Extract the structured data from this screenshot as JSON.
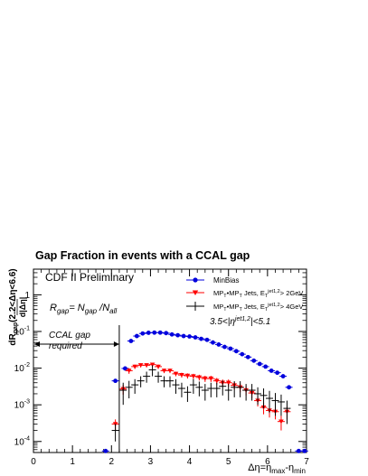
{
  "figure": {
    "title": "Gap Fraction in events with a CCAL gap",
    "preliminary_label": "CDF II Preliminary",
    "formula": "R_gap = N_gap / N_all",
    "eta_condition": "3.5<|η^jet1,2|<5.1",
    "gap_annotation_line1": "CCAL gap",
    "gap_annotation_line2": "required",
    "xlabel": "Δη=η_max-η_min",
    "ylabel": "dR_gap(2.2<Δη<6.6) / d|Δη|"
  },
  "chart_data": {
    "type": "scatter",
    "title": "Gap Fraction in events with a CCAL gap",
    "xlabel": "Δη=η_max-η_min",
    "ylabel": "dR_gap(2.2<Δη<6.6)/d|Δη|",
    "xlim": [
      0,
      7
    ],
    "ylim": [
      5e-05,
      5
    ],
    "y_scale": "log",
    "x_ticks": [
      0,
      1,
      2,
      3,
      4,
      5,
      6,
      7
    ],
    "y_ticks": [
      {
        "value": 0.0001,
        "label": "10^-4"
      },
      {
        "value": 0.001,
        "label": "10^-3"
      },
      {
        "value": 0.01,
        "label": "10^-2"
      },
      {
        "value": 0.1,
        "label": "10^-1"
      },
      {
        "value": 1,
        "label": "1"
      }
    ],
    "legend_position": "top-right",
    "series": [
      {
        "name": "MinBias",
        "color": "#0000dd",
        "marker": "circle",
        "points": [
          {
            "x": 1.85,
            "y": 5.5e-05
          },
          {
            "x": 2.1,
            "y": 0.0045
          },
          {
            "x": 2.35,
            "y": 0.0098
          },
          {
            "x": 2.5,
            "y": 0.055
          },
          {
            "x": 2.65,
            "y": 0.075
          },
          {
            "x": 2.8,
            "y": 0.088
          },
          {
            "x": 2.95,
            "y": 0.092
          },
          {
            "x": 3.1,
            "y": 0.093
          },
          {
            "x": 3.25,
            "y": 0.093
          },
          {
            "x": 3.4,
            "y": 0.09
          },
          {
            "x": 3.55,
            "y": 0.083
          },
          {
            "x": 3.7,
            "y": 0.079
          },
          {
            "x": 3.85,
            "y": 0.075
          },
          {
            "x": 4.0,
            "y": 0.073
          },
          {
            "x": 4.15,
            "y": 0.069
          },
          {
            "x": 4.3,
            "y": 0.063
          },
          {
            "x": 4.45,
            "y": 0.059
          },
          {
            "x": 4.6,
            "y": 0.05
          },
          {
            "x": 4.75,
            "y": 0.044
          },
          {
            "x": 4.9,
            "y": 0.038
          },
          {
            "x": 5.05,
            "y": 0.034
          },
          {
            "x": 5.2,
            "y": 0.029
          },
          {
            "x": 5.35,
            "y": 0.024
          },
          {
            "x": 5.5,
            "y": 0.02
          },
          {
            "x": 5.65,
            "y": 0.016
          },
          {
            "x": 5.8,
            "y": 0.013
          },
          {
            "x": 5.95,
            "y": 0.011
          },
          {
            "x": 6.1,
            "y": 0.0085
          },
          {
            "x": 6.25,
            "y": 0.0075
          },
          {
            "x": 6.4,
            "y": 0.006
          },
          {
            "x": 6.55,
            "y": 0.003
          },
          {
            "x": 6.8,
            "y": 5.5e-05
          },
          {
            "x": 6.95,
            "y": 5.5e-05
          }
        ]
      },
      {
        "name": "MP_T•MP_T Jets, E_T^jet1,2 > 2GeV",
        "color": "#ff0000",
        "marker": "triangle-down",
        "points": [
          {
            "x": 2.1,
            "y": 0.0003,
            "err": 0.0001
          },
          {
            "x": 2.3,
            "y": 0.0027,
            "err": 0.0008
          },
          {
            "x": 2.45,
            "y": 0.0085,
            "err": 0.0015
          },
          {
            "x": 2.6,
            "y": 0.011,
            "err": 0.0015
          },
          {
            "x": 2.75,
            "y": 0.012,
            "err": 0.0015
          },
          {
            "x": 2.9,
            "y": 0.012,
            "err": 0.0015
          },
          {
            "x": 3.05,
            "y": 0.0125,
            "err": 0.0015
          },
          {
            "x": 3.2,
            "y": 0.011,
            "err": 0.0015
          },
          {
            "x": 3.35,
            "y": 0.0085,
            "err": 0.0012
          },
          {
            "x": 3.5,
            "y": 0.0085,
            "err": 0.0012
          },
          {
            "x": 3.65,
            "y": 0.007,
            "err": 0.001
          },
          {
            "x": 3.8,
            "y": 0.0065,
            "err": 0.001
          },
          {
            "x": 3.95,
            "y": 0.0062,
            "err": 0.001
          },
          {
            "x": 4.1,
            "y": 0.006,
            "err": 0.001
          },
          {
            "x": 4.25,
            "y": 0.0056,
            "err": 0.001
          },
          {
            "x": 4.4,
            "y": 0.0052,
            "err": 0.001
          },
          {
            "x": 4.55,
            "y": 0.0052,
            "err": 0.001
          },
          {
            "x": 4.7,
            "y": 0.0045,
            "err": 0.0009
          },
          {
            "x": 4.85,
            "y": 0.004,
            "err": 0.0009
          },
          {
            "x": 5.0,
            "y": 0.004,
            "err": 0.0009
          },
          {
            "x": 5.15,
            "y": 0.0034,
            "err": 0.0008
          },
          {
            "x": 5.3,
            "y": 0.003,
            "err": 0.0008
          },
          {
            "x": 5.45,
            "y": 0.0025,
            "err": 0.0007
          },
          {
            "x": 5.6,
            "y": 0.0021,
            "err": 0.0006
          },
          {
            "x": 5.75,
            "y": 0.0013,
            "err": 0.0004
          },
          {
            "x": 5.9,
            "y": 0.00085,
            "err": 0.0003
          },
          {
            "x": 6.05,
            "y": 0.0007,
            "err": 0.00025
          },
          {
            "x": 6.2,
            "y": 0.00065,
            "err": 0.00025
          },
          {
            "x": 6.35,
            "y": 0.00035,
            "err": 0.00015
          },
          {
            "x": 6.5,
            "y": 0.00065,
            "err": 0.00025
          }
        ]
      },
      {
        "name": "MP_T•MP_T Jets, E_T^jet1,2 > 4GeV",
        "color": "#000000",
        "marker": "cross",
        "points": [
          {
            "x": 2.1,
            "y": 0.0002,
            "err": 0.0001
          },
          {
            "x": 2.3,
            "y": 0.0025,
            "err": 0.0015
          },
          {
            "x": 2.45,
            "y": 0.003,
            "err": 0.0015
          },
          {
            "x": 2.6,
            "y": 0.0035,
            "err": 0.0015
          },
          {
            "x": 2.75,
            "y": 0.0045,
            "err": 0.0015
          },
          {
            "x": 2.9,
            "y": 0.006,
            "err": 0.002
          },
          {
            "x": 3.05,
            "y": 0.009,
            "err": 0.003
          },
          {
            "x": 3.2,
            "y": 0.006,
            "err": 0.002
          },
          {
            "x": 3.35,
            "y": 0.0045,
            "err": 0.0015
          },
          {
            "x": 3.5,
            "y": 0.0045,
            "err": 0.0015
          },
          {
            "x": 3.65,
            "y": 0.0035,
            "err": 0.0015
          },
          {
            "x": 3.8,
            "y": 0.0028,
            "err": 0.0012
          },
          {
            "x": 3.95,
            "y": 0.0022,
            "err": 0.001
          },
          {
            "x": 4.1,
            "y": 0.0035,
            "err": 0.0015
          },
          {
            "x": 4.25,
            "y": 0.003,
            "err": 0.0013
          },
          {
            "x": 4.4,
            "y": 0.0025,
            "err": 0.0012
          },
          {
            "x": 4.55,
            "y": 0.0028,
            "err": 0.0012
          },
          {
            "x": 4.7,
            "y": 0.0028,
            "err": 0.0012
          },
          {
            "x": 4.85,
            "y": 0.0032,
            "err": 0.0014
          },
          {
            "x": 5.0,
            "y": 0.0025,
            "err": 0.0012
          },
          {
            "x": 5.15,
            "y": 0.003,
            "err": 0.0014
          },
          {
            "x": 5.3,
            "y": 0.003,
            "err": 0.0014
          },
          {
            "x": 5.45,
            "y": 0.0025,
            "err": 0.0012
          },
          {
            "x": 5.6,
            "y": 0.0025,
            "err": 0.0012
          },
          {
            "x": 5.75,
            "y": 0.002,
            "err": 0.001
          },
          {
            "x": 5.9,
            "y": 0.0018,
            "err": 0.001
          },
          {
            "x": 6.05,
            "y": 0.0015,
            "err": 0.0009
          },
          {
            "x": 6.2,
            "y": 0.0013,
            "err": 0.0008
          },
          {
            "x": 6.35,
            "y": 0.0012,
            "err": 0.0007
          },
          {
            "x": 6.5,
            "y": 0.0008,
            "err": 0.0005
          }
        ]
      }
    ]
  }
}
